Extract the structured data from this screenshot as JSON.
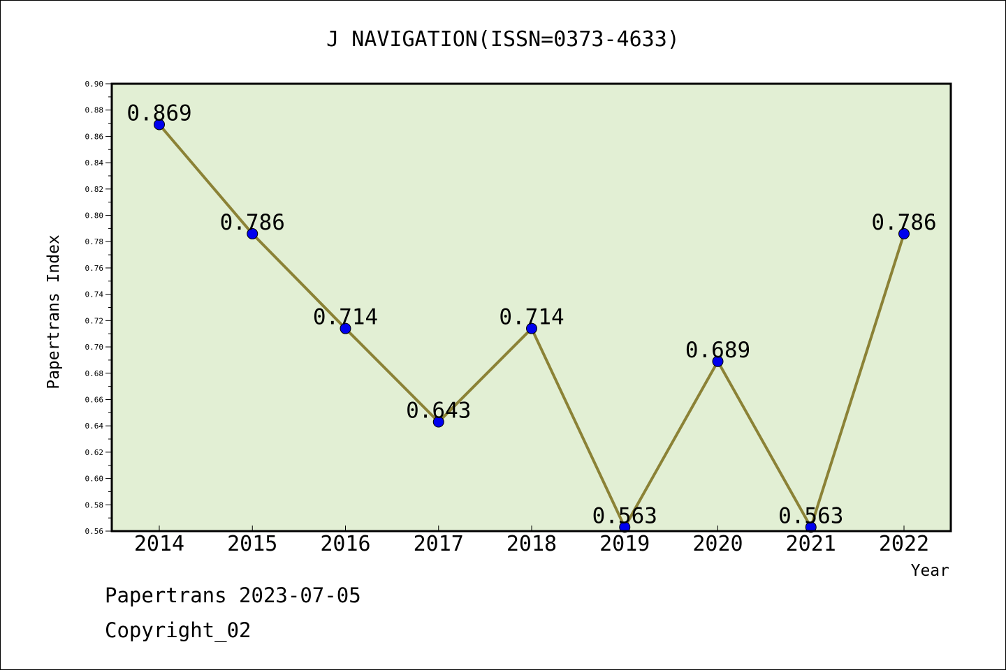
{
  "chart_data": {
    "type": "line",
    "title": "J NAVIGATION(ISSN=0373-4633)",
    "xlabel": "Year",
    "ylabel": "Papertrans Index",
    "categories": [
      "2014",
      "2015",
      "2016",
      "2017",
      "2018",
      "2019",
      "2020",
      "2021",
      "2022"
    ],
    "values": [
      0.869,
      0.786,
      0.714,
      0.643,
      0.714,
      0.563,
      0.689,
      0.563,
      0.786
    ],
    "data_labels": [
      "0.869",
      "0.786",
      "0.714",
      "0.643",
      "0.714",
      "0.563",
      "0.689",
      "0.563",
      "0.786"
    ],
    "ylim": [
      0.56,
      0.9
    ],
    "yticks": [
      "0.56",
      "0.58",
      "0.60",
      "0.62",
      "0.64",
      "0.66",
      "0.68",
      "0.70",
      "0.72",
      "0.74",
      "0.76",
      "0.78",
      "0.80",
      "0.82",
      "0.84",
      "0.86",
      "0.88",
      "0.90"
    ],
    "grid": false,
    "colors": {
      "plot_bg": "#e2efd4",
      "line": "#8b8236",
      "marker": "#0000ee"
    }
  },
  "footer": {
    "line1": "Papertrans 2023-07-05",
    "line2": "Copyright_02"
  }
}
